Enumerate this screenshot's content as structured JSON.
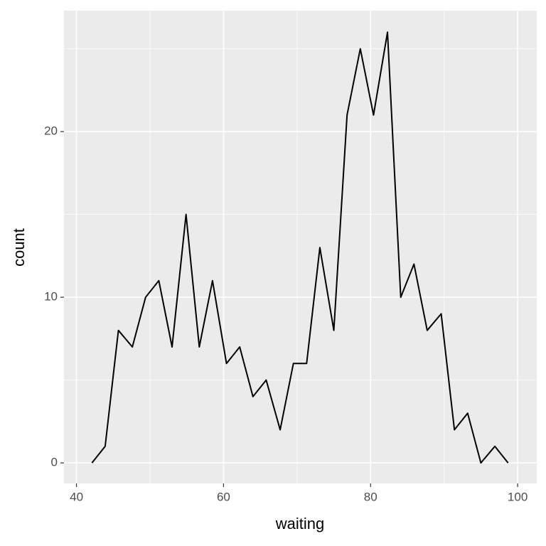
{
  "chart_data": {
    "type": "line",
    "x_label": "waiting",
    "y_label": "count",
    "x": [
      42.1,
      43.9,
      45.7,
      47.6,
      49.4,
      51.2,
      53.0,
      54.9,
      56.7,
      58.5,
      60.4,
      62.2,
      64.0,
      65.8,
      67.7,
      69.5,
      71.3,
      73.1,
      75.0,
      76.8,
      78.6,
      80.4,
      82.3,
      84.1,
      85.9,
      87.7,
      89.6,
      91.4,
      93.2,
      95.0,
      96.9,
      98.7
    ],
    "series": [
      {
        "color": "#000000",
        "values": [
          0,
          1,
          8,
          7,
          10,
          11,
          7,
          15,
          7,
          11,
          6,
          7,
          4,
          5,
          2,
          6,
          6,
          13,
          8,
          21,
          25,
          21,
          26,
          10,
          12,
          8,
          9,
          2,
          3,
          0,
          1,
          0
        ]
      }
    ],
    "xlim": [
      38.3,
      102.6
    ],
    "ylim": [
      -1.24,
      27.3
    ],
    "xticks": [
      40,
      60,
      80,
      100
    ],
    "yticks": [
      0,
      10,
      20
    ],
    "grid": true
  }
}
